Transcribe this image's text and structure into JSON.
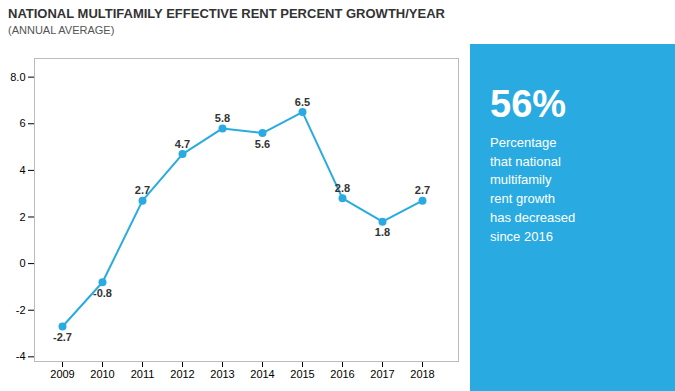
{
  "chart_data": {
    "type": "line",
    "title": "NATIONAL MULTIFAMILY EFFECTIVE RENT PERCENT GROWTH/YEAR",
    "subtitle": "(ANNUAL AVERAGE)",
    "x": [
      2009,
      2010,
      2011,
      2012,
      2013,
      2014,
      2015,
      2016,
      2017,
      2018
    ],
    "values": [
      -2.7,
      -0.8,
      2.7,
      4.7,
      5.8,
      5.6,
      6.5,
      2.8,
      1.8,
      2.7
    ],
    "color": "#29ABE2",
    "marker": "circle",
    "xlim": [
      2008.3,
      2018.9
    ],
    "xticks": [
      2009,
      2010,
      2011,
      2012,
      2013,
      2014,
      2015,
      2016,
      2017,
      2018
    ],
    "ylim": [
      -4.2,
      8.8
    ],
    "yticks": [
      -4,
      -2,
      0,
      2,
      4,
      6,
      {
        "value": 8,
        "label": "8.0"
      }
    ],
    "grid": false,
    "data_labels": true,
    "annotations": [
      "56%",
      "Percentage\nthat national\nmultifamily\nrent growth\nhas decreased\nsince 2016"
    ]
  }
}
